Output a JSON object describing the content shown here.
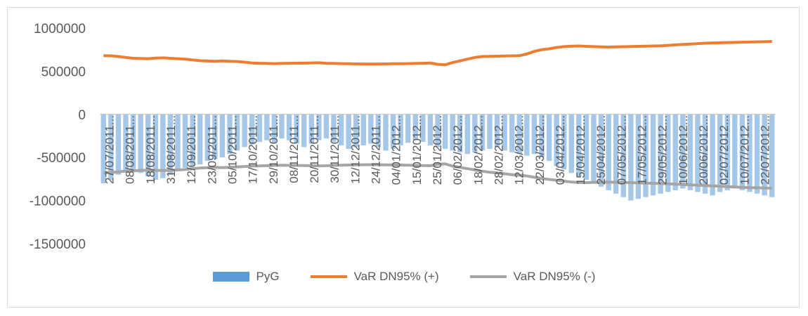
{
  "colors": {
    "pyg": "#5b9bd5",
    "var_pos": "#ed7d31",
    "var_neg": "#a5a5a5",
    "axis_text": "#595959"
  },
  "chart_data": {
    "type": "bar",
    "title": "",
    "xlabel": "",
    "ylabel": "",
    "ylim": [
      -1500000,
      1000000
    ],
    "yticks": [
      1000000,
      500000,
      0,
      -500000,
      -1000000,
      -1500000
    ],
    "ytick_labels": [
      "1000000",
      "500000",
      "0",
      "-500000",
      "-1000000",
      "-1500000"
    ],
    "grid": false,
    "legend_position": "bottom",
    "x_tick_labels": [
      "27/07/2011...",
      "08/08/2011...",
      "18/08/2011...",
      "31/08/2011...",
      "12/09/2011...",
      "23/09/2011...",
      "05/10/2011...",
      "17/10/2011...",
      "29/10/2011...",
      "08/11/2011...",
      "20/11/2011...",
      "30/11/2011...",
      "12/12/2011...",
      "24/12/2011...",
      "04/01/2012...",
      "15/01/2012...",
      "25/01/2012...",
      "06/02/2012...",
      "18/02/2012...",
      "28/02/2012...",
      "12/03/2012...",
      "22/03/2012...",
      "03/04/2012...",
      "15/04/2012...",
      "25/04/2012...",
      "07/05/2012...",
      "17/05/2012...",
      "29/05/2012...",
      "10/06/2012...",
      "20/06/2012...",
      "02/07/2012...",
      "10/07/2012...",
      "22/07/2012..."
    ],
    "series": [
      {
        "name": "PyG",
        "type": "bar",
        "values": [
          -800000,
          -760000,
          -700000,
          -660000,
          -640000,
          -680000,
          -720000,
          -760000,
          -740000,
          -700000,
          -660000,
          -620000,
          -600000,
          -580000,
          -540000,
          -520000,
          -500000,
          -460000,
          -420000,
          -380000,
          -350000,
          -320000,
          -300000,
          -330000,
          -280000,
          -300000,
          -340000,
          -380000,
          -340000,
          -300000,
          -280000,
          -320000,
          -360000,
          -400000,
          -380000,
          -360000,
          -340000,
          -380000,
          -420000,
          -400000,
          -360000,
          -330000,
          -300000,
          -320000,
          -360000,
          -380000,
          -400000,
          -420000,
          -440000,
          -460000,
          -440000,
          -420000,
          -400000,
          -380000,
          -420000,
          -440000,
          -460000,
          -480000,
          -460000,
          -500000,
          -540000,
          -600000,
          -640000,
          -680000,
          -720000,
          -760000,
          -800000,
          -840000,
          -880000,
          -920000,
          -960000,
          -1000000,
          -980000,
          -960000,
          -940000,
          -920000,
          -900000,
          -880000,
          -860000,
          -880000,
          -900000,
          -920000,
          -940000,
          -900000,
          -880000,
          -860000,
          -880000,
          -900000,
          -920000,
          -940000,
          -960000
        ]
      },
      {
        "name": "VaR  DN95% (+)",
        "type": "line",
        "values": [
          680000,
          678000,
          670000,
          660000,
          650000,
          648000,
          645000,
          652000,
          655000,
          650000,
          645000,
          640000,
          630000,
          622000,
          618000,
          615000,
          620000,
          615000,
          612000,
          605000,
          595000,
          592000,
          590000,
          588000,
          590000,
          592000,
          593000,
          594000,
          596000,
          598000,
          592000,
          590000,
          588000,
          586000,
          585000,
          584000,
          583000,
          584000,
          585000,
          586000,
          587000,
          588000,
          590000,
          592000,
          595000,
          580000,
          575000,
          600000,
          620000,
          640000,
          660000,
          670000,
          672000,
          674000,
          676000,
          678000,
          680000,
          700000,
          730000,
          750000,
          760000,
          775000,
          785000,
          790000,
          792000,
          788000,
          785000,
          782000,
          780000,
          782000,
          784000,
          786000,
          788000,
          790000,
          792000,
          795000,
          800000,
          805000,
          810000,
          815000,
          820000,
          825000,
          828000,
          830000,
          832000,
          834000,
          836000,
          838000,
          840000,
          842000,
          845000
        ]
      },
      {
        "name": "VaR  DN95% (-)",
        "type": "line",
        "values": [
          -680000,
          -675000,
          -668000,
          -660000,
          -655000,
          -650000,
          -648000,
          -650000,
          -652000,
          -650000,
          -645000,
          -640000,
          -630000,
          -622000,
          -618000,
          -615000,
          -618000,
          -615000,
          -610000,
          -605000,
          -600000,
          -598000,
          -595000,
          -592000,
          -590000,
          -592000,
          -593000,
          -594000,
          -596000,
          -598000,
          -596000,
          -592000,
          -590000,
          -588000,
          -586000,
          -585000,
          -584000,
          -585000,
          -586000,
          -587000,
          -588000,
          -590000,
          -592000,
          -594000,
          -596000,
          -580000,
          -575000,
          -600000,
          -615000,
          -630000,
          -645000,
          -660000,
          -672000,
          -680000,
          -690000,
          -700000,
          -705000,
          -715000,
          -730000,
          -745000,
          -755000,
          -765000,
          -775000,
          -785000,
          -790000,
          -792000,
          -790000,
          -788000,
          -786000,
          -788000,
          -790000,
          -792000,
          -795000,
          -798000,
          -800000,
          -803000,
          -806000,
          -810000,
          -814000,
          -818000,
          -822000,
          -826000,
          -830000,
          -834000,
          -838000,
          -842000,
          -846000,
          -850000,
          -852000,
          -854000,
          -856000
        ]
      }
    ]
  },
  "legend": {
    "items": [
      "PyG",
      "VaR  DN95% (+)",
      "VaR  DN95% (-)"
    ]
  }
}
